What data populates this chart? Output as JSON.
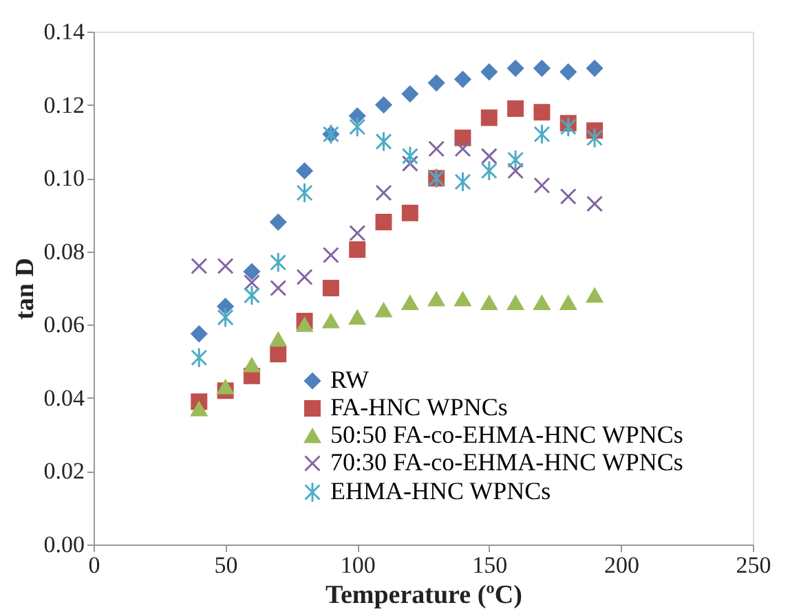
{
  "chart_data": {
    "type": "scatter",
    "xlabel": "Temperature (ºC)",
    "ylabel": "tan D",
    "x": [
      40,
      50,
      60,
      70,
      80,
      90,
      100,
      110,
      120,
      130,
      140,
      150,
      160,
      170,
      180,
      190
    ],
    "xlim": [
      0,
      250
    ],
    "xticks": [
      0,
      50,
      100,
      150,
      200,
      250
    ],
    "ylim": [
      0,
      0.14
    ],
    "yticks": [
      {
        "value": 0,
        "label": "0.00"
      },
      {
        "value": 0.02,
        "label": "0.02"
      },
      {
        "value": 0.04,
        "label": "0.04"
      },
      {
        "value": 0.06,
        "label": "0.06"
      },
      {
        "value": 0.08,
        "label": "0.08"
      },
      {
        "value": 0.1,
        "label": "0.10"
      },
      {
        "value": 0.12,
        "label": "0.12"
      },
      {
        "value": 0.14,
        "label": "0.14"
      }
    ],
    "grid": false,
    "legend": "bottom",
    "series": [
      {
        "name": "RW",
        "color": "#4f81bd",
        "marker": "diamond",
        "values": [
          0.0575,
          0.065,
          0.0745,
          0.088,
          0.102,
          0.112,
          0.117,
          0.12,
          0.123,
          0.126,
          0.127,
          0.129,
          0.13,
          0.13,
          0.129,
          0.13
        ]
      },
      {
        "name": "FA-HNC WPNCs",
        "color": "#c0504d",
        "marker": "square",
        "values": [
          0.039,
          0.042,
          0.046,
          0.052,
          0.061,
          0.07,
          0.0805,
          0.088,
          0.0905,
          0.1,
          0.111,
          0.1165,
          0.119,
          0.118,
          0.115,
          0.113
        ]
      },
      {
        "name": "50:50 FA-co-EHMA-HNC WPNCs",
        "color": "#9bbb59",
        "marker": "triangle",
        "values": [
          0.037,
          0.043,
          0.049,
          0.056,
          0.06,
          0.061,
          0.062,
          0.064,
          0.066,
          0.067,
          0.067,
          0.066,
          0.066,
          0.066,
          0.066,
          0.068
        ]
      },
      {
        "name": "70:30 FA-co-EHMA-HNC WPNCs",
        "color": "#8064a2",
        "marker": "cross",
        "values": [
          0.076,
          0.076,
          0.0715,
          0.07,
          0.073,
          0.079,
          0.085,
          0.096,
          0.104,
          0.108,
          0.108,
          0.106,
          0.102,
          0.098,
          0.095,
          0.093
        ]
      },
      {
        "name": "EHMA-HNC WPNCs",
        "color": "#4bacc6",
        "marker": "cross",
        "values": [
          0.051,
          0.062,
          0.068,
          0.077,
          0.096,
          0.112,
          0.114,
          0.11,
          0.106,
          0.1,
          0.099,
          0.102,
          0.105,
          0.112,
          0.114,
          0.111
        ]
      }
    ]
  }
}
